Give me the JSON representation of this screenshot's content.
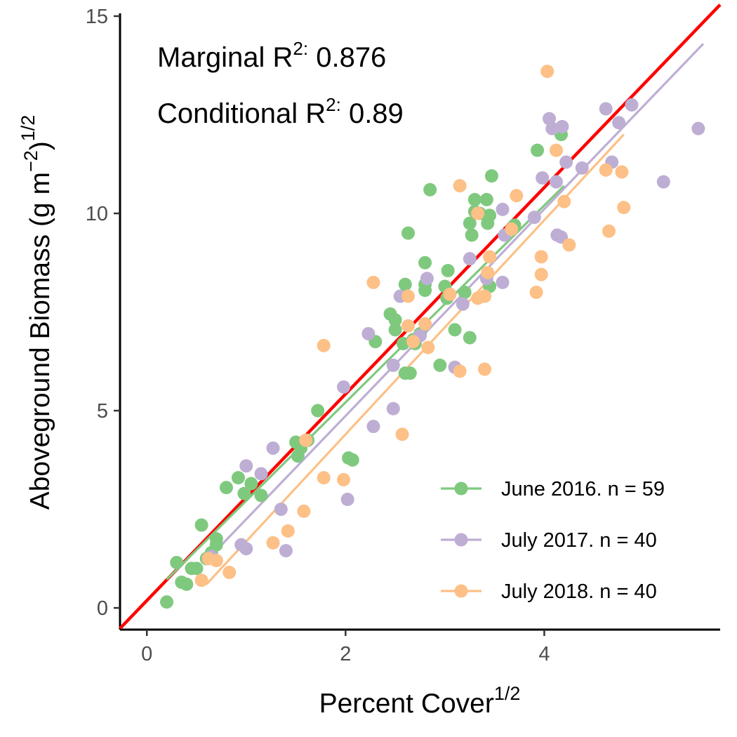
{
  "chart_data": {
    "type": "scatter",
    "xlabel": "Percent  Cover",
    "xlabel_sup": "1/2",
    "ylabel": "Aboveground  Biomass  (g  m",
    "ylabel_sup_inner": "−2",
    "ylabel_close": ")",
    "ylabel_sup_outer": "1/2",
    "xlim": [
      -0.27,
      5.77
    ],
    "ylim": [
      -0.55,
      15
    ],
    "x_ticks": [
      0,
      2,
      4
    ],
    "x_tick_labels": [
      "0",
      "2",
      "4"
    ],
    "y_ticks": [
      0,
      5,
      10,
      15
    ],
    "y_tick_labels": [
      "0",
      "5",
      "10",
      "15"
    ],
    "grid": false,
    "legend_position": "bottom-right",
    "annotations": [
      {
        "prefix": "Marginal R",
        "sup": "2:",
        "value": " 0.876"
      },
      {
        "prefix": "Conditional R",
        "sup": "2:",
        "value": " 0.89"
      }
    ],
    "overall_fit": {
      "color": "#ff0000",
      "x": [
        -0.27,
        5.77
      ],
      "y": [
        -0.52,
        15.29
      ]
    },
    "series": [
      {
        "name": "June 2016. n = 59",
        "color": "#7fc97f",
        "fit": {
          "x": [
            0.2,
            4.2
          ],
          "y": [
            0.72,
            10.7
          ]
        },
        "points": [
          [
            0.2,
            0.15
          ],
          [
            0.3,
            1.15
          ],
          [
            0.35,
            0.65
          ],
          [
            0.4,
            0.6
          ],
          [
            0.45,
            1.0
          ],
          [
            0.5,
            1.0
          ],
          [
            0.55,
            2.1
          ],
          [
            0.6,
            1.25
          ],
          [
            0.65,
            1.4
          ],
          [
            0.7,
            1.75
          ],
          [
            0.7,
            1.6
          ],
          [
            0.8,
            3.05
          ],
          [
            0.92,
            3.3
          ],
          [
            1.05,
            3.15
          ],
          [
            1.15,
            2.85
          ],
          [
            1.5,
            4.2
          ],
          [
            1.52,
            3.85
          ],
          [
            1.55,
            4.05
          ],
          [
            1.72,
            5.0
          ],
          [
            2.03,
            3.8
          ],
          [
            2.07,
            3.75
          ],
          [
            2.3,
            6.75
          ],
          [
            2.45,
            7.45
          ],
          [
            2.5,
            7.3
          ],
          [
            2.5,
            7.05
          ],
          [
            2.6,
            5.95
          ],
          [
            2.65,
            5.95
          ],
          [
            2.6,
            8.2
          ],
          [
            2.63,
            9.5
          ],
          [
            2.68,
            6.8
          ],
          [
            2.75,
            6.95
          ],
          [
            2.8,
            8.75
          ],
          [
            2.8,
            8.05
          ],
          [
            2.8,
            8.2
          ],
          [
            2.85,
            10.6
          ],
          [
            2.95,
            6.15
          ],
          [
            3.0,
            8.15
          ],
          [
            3.02,
            7.85
          ],
          [
            3.03,
            8.55
          ],
          [
            3.1,
            7.05
          ],
          [
            3.25,
            6.85
          ],
          [
            3.25,
            9.75
          ],
          [
            3.27,
            9.45
          ],
          [
            3.3,
            10.35
          ],
          [
            3.3,
            10.05
          ],
          [
            3.35,
            10.0
          ],
          [
            3.42,
            10.35
          ],
          [
            3.43,
            9.75
          ],
          [
            3.45,
            9.95
          ],
          [
            3.45,
            8.15
          ],
          [
            3.47,
            10.95
          ],
          [
            3.7,
            9.7
          ],
          [
            3.93,
            11.6
          ],
          [
            4.17,
            12.0
          ],
          [
            2.7,
            6.7
          ],
          [
            0.98,
            2.9
          ],
          [
            1.62,
            4.25
          ],
          [
            2.58,
            6.7
          ],
          [
            3.2,
            8.0
          ]
        ]
      },
      {
        "name": "July 2017. n = 40",
        "color": "#beaed4",
        "fit": {
          "x": [
            0.6,
            5.6
          ],
          "y": [
            1.2,
            14.3
          ]
        },
        "points": [
          [
            0.65,
            1.3
          ],
          [
            0.95,
            1.6
          ],
          [
            1.0,
            1.5
          ],
          [
            1.0,
            3.6
          ],
          [
            1.15,
            3.4
          ],
          [
            1.27,
            4.05
          ],
          [
            1.35,
            2.5
          ],
          [
            1.4,
            1.45
          ],
          [
            1.98,
            5.6
          ],
          [
            2.02,
            2.75
          ],
          [
            2.23,
            6.95
          ],
          [
            2.28,
            4.6
          ],
          [
            2.48,
            5.05
          ],
          [
            2.48,
            6.15
          ],
          [
            2.55,
            7.9
          ],
          [
            2.75,
            6.9
          ],
          [
            2.82,
            8.35
          ],
          [
            3.1,
            6.1
          ],
          [
            3.18,
            7.7
          ],
          [
            3.25,
            8.85
          ],
          [
            3.42,
            8.35
          ],
          [
            3.58,
            10.1
          ],
          [
            3.6,
            9.45
          ],
          [
            3.58,
            8.25
          ],
          [
            3.9,
            9.9
          ],
          [
            3.98,
            10.9
          ],
          [
            4.05,
            12.4
          ],
          [
            4.08,
            12.15
          ],
          [
            4.12,
            10.8
          ],
          [
            4.13,
            9.45
          ],
          [
            4.18,
            12.2
          ],
          [
            4.22,
            11.3
          ],
          [
            4.38,
            11.15
          ],
          [
            4.62,
            12.65
          ],
          [
            4.68,
            11.3
          ],
          [
            4.75,
            12.3
          ],
          [
            4.88,
            12.75
          ],
          [
            5.2,
            10.8
          ],
          [
            5.55,
            12.15
          ],
          [
            4.17,
            9.4
          ]
        ]
      },
      {
        "name": "July 2018. n = 40",
        "color": "#fdc086",
        "fit": {
          "x": [
            0.6,
            4.8
          ],
          "y": [
            0.6,
            12.0
          ]
        },
        "points": [
          [
            0.55,
            0.7
          ],
          [
            0.62,
            1.25
          ],
          [
            0.7,
            1.2
          ],
          [
            0.83,
            0.9
          ],
          [
            1.27,
            1.65
          ],
          [
            1.42,
            1.95
          ],
          [
            1.58,
            2.45
          ],
          [
            1.6,
            4.25
          ],
          [
            1.78,
            6.65
          ],
          [
            1.78,
            3.3
          ],
          [
            1.98,
            3.25
          ],
          [
            2.28,
            8.25
          ],
          [
            2.57,
            4.4
          ],
          [
            2.63,
            7.15
          ],
          [
            2.63,
            7.9
          ],
          [
            2.68,
            6.75
          ],
          [
            2.8,
            7.2
          ],
          [
            2.83,
            6.6
          ],
          [
            3.05,
            7.95
          ],
          [
            3.15,
            10.7
          ],
          [
            3.15,
            6.0
          ],
          [
            3.33,
            10.0
          ],
          [
            3.33,
            7.85
          ],
          [
            3.4,
            7.9
          ],
          [
            3.4,
            6.05
          ],
          [
            3.43,
            8.5
          ],
          [
            3.45,
            8.9
          ],
          [
            3.67,
            9.6
          ],
          [
            3.72,
            10.45
          ],
          [
            3.92,
            8.0
          ],
          [
            3.97,
            8.45
          ],
          [
            3.97,
            8.9
          ],
          [
            4.03,
            13.6
          ],
          [
            4.12,
            11.6
          ],
          [
            4.2,
            10.3
          ],
          [
            4.25,
            9.2
          ],
          [
            4.62,
            11.1
          ],
          [
            4.65,
            9.55
          ],
          [
            4.78,
            11.05
          ],
          [
            4.8,
            10.15
          ]
        ]
      }
    ]
  }
}
